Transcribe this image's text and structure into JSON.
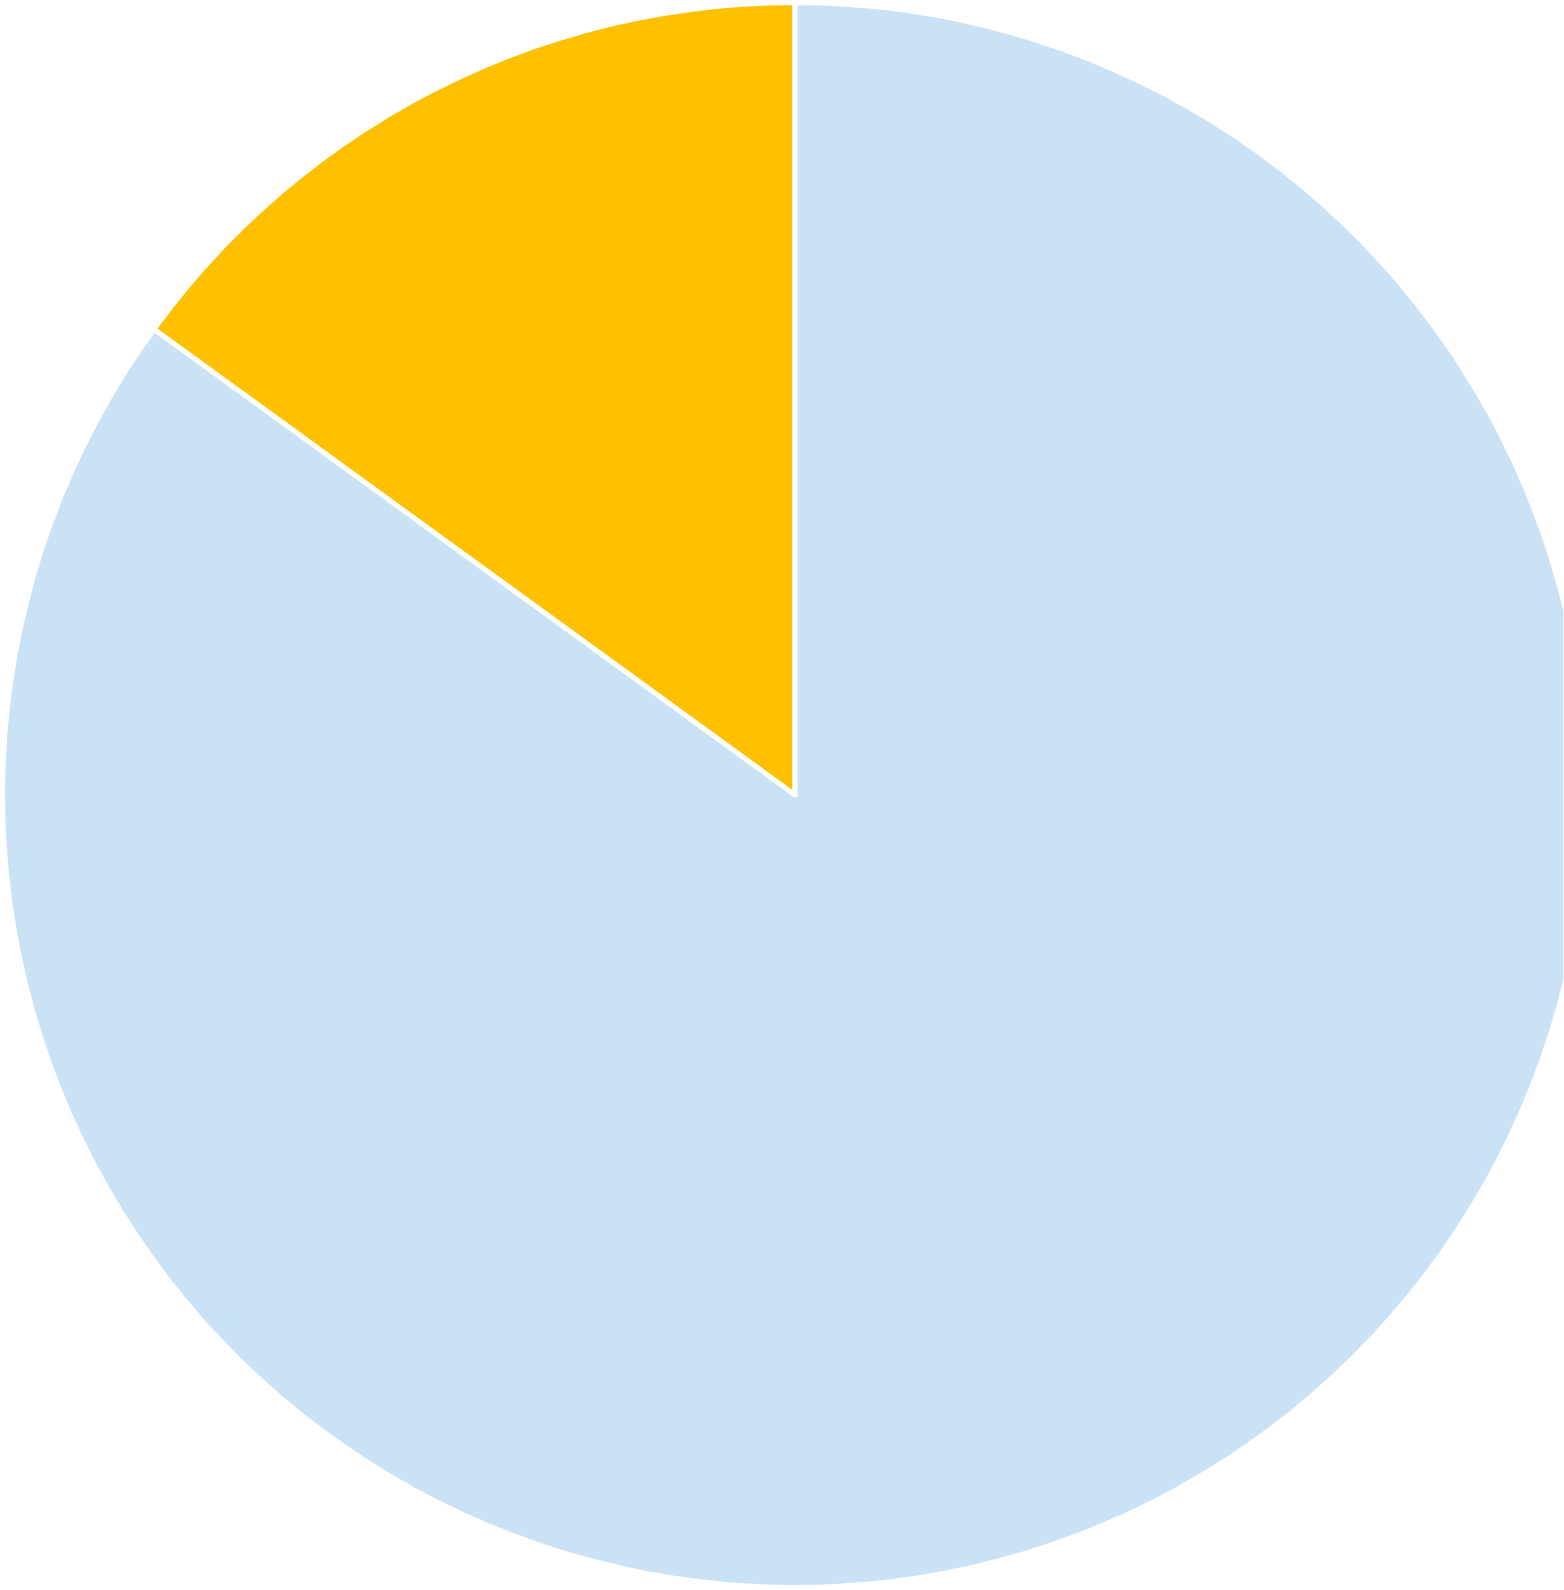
{
  "chart_data": {
    "type": "pie",
    "categories": [
      null,
      null
    ],
    "values": [
      15,
      85
    ],
    "colors": [
      "#ffc000",
      "#c9e2f6"
    ]
  }
}
